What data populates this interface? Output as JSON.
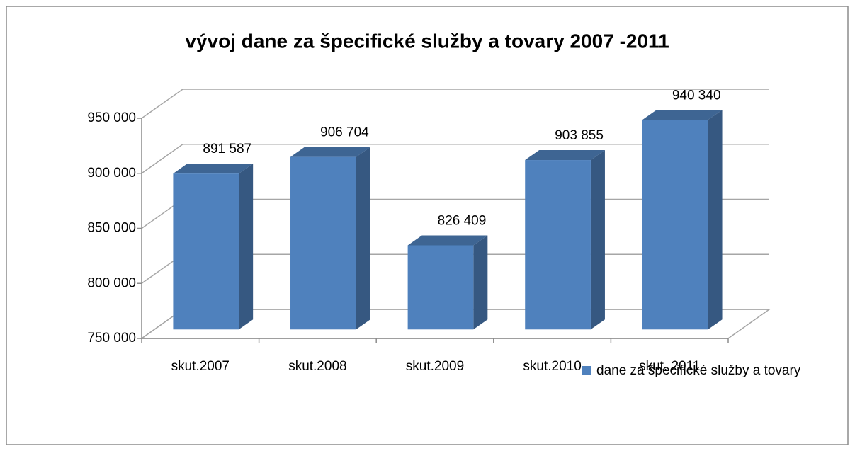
{
  "chart_data": {
    "type": "bar",
    "title": "vývoj dane za špecifické služby a tovary 2007 -2011",
    "categories": [
      "skut.2007",
      "skut.2008",
      "skut.2009",
      "skut.2010",
      "skut. 2011"
    ],
    "series": [
      {
        "name": "dane za špecifické služby a tovary",
        "color": "#4f81bd",
        "values": [
          891587,
          906704,
          826409,
          903855,
          940340
        ],
        "value_labels": [
          "891 587",
          "906 704",
          "826 409",
          "903 855",
          "940 340"
        ]
      }
    ],
    "ylim": [
      750000,
      950000
    ],
    "yticks": [
      {
        "value": 750000,
        "label": "750 000"
      },
      {
        "value": 800000,
        "label": "800 000"
      },
      {
        "value": 850000,
        "label": "850 000"
      },
      {
        "value": 900000,
        "label": "900 000"
      },
      {
        "value": 950000,
        "label": "950 000"
      }
    ],
    "grid": true,
    "legend": "bottom-right"
  }
}
